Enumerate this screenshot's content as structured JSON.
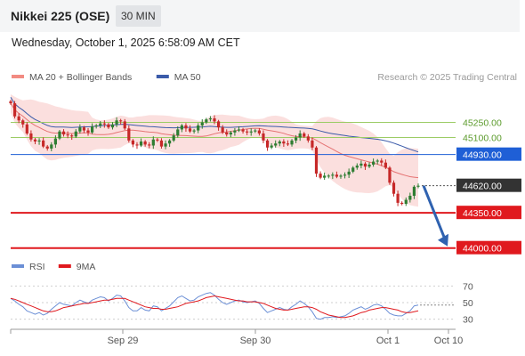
{
  "header": {
    "title": "Nikkei 225 (OSE)",
    "interval_button": "30 MIN",
    "datetime": "Wednesday, October 1, 2025 6:58:09 AM CET"
  },
  "colors": {
    "price_up": "#2e7d32",
    "price_down": "#c62828",
    "bollinger": "#f6b9b5",
    "ma20": "#e57373",
    "ma50": "#3b5ba9",
    "support": "#e0191e",
    "resistance_green": "#9ccc65",
    "pivot": "#1f5fd6",
    "current": "#333333",
    "forecast_arrow": "#2f62b0",
    "rsi": "#6b8fd6",
    "rsi_ma": "#e0191e"
  },
  "chart_data": [
    {
      "type": "candlestick",
      "legend": [
        {
          "label": "MA 20 + Bollinger Bands",
          "color": "#f28b82"
        },
        {
          "label": "MA 50",
          "color": "#3b5ba9"
        }
      ],
      "attribution": "Research © 2025 Trading Central",
      "x_ticks": [
        "Sep 29",
        "Sep 30",
        "Oct 1",
        "Oct 10"
      ],
      "ylim": [
        43900,
        45600
      ],
      "levels": [
        {
          "value": 45250,
          "label": "45250.00",
          "kind": "resistance"
        },
        {
          "value": 45100,
          "label": "45100.00",
          "kind": "resistance"
        },
        {
          "value": 44930,
          "label": "44930.00",
          "kind": "pivot"
        },
        {
          "value": 44620,
          "label": "44620.00",
          "kind": "current"
        },
        {
          "value": 44350,
          "label": "44350.00",
          "kind": "support"
        },
        {
          "value": 44000,
          "label": "44000.00",
          "kind": "support"
        }
      ],
      "forecast_target": 44000,
      "close": [
        45440,
        45310,
        45270,
        45230,
        45140,
        45080,
        45060,
        45070,
        45010,
        44990,
        45030,
        45090,
        45160,
        45130,
        45120,
        45110,
        45160,
        45200,
        45170,
        45150,
        45210,
        45220,
        45240,
        45230,
        45200,
        45230,
        45270,
        45260,
        45190,
        45070,
        45030,
        45020,
        45060,
        45030,
        45020,
        45080,
        45070,
        45010,
        45040,
        45070,
        45120,
        45180,
        45220,
        45190,
        45160,
        45170,
        45220,
        45250,
        45280,
        45290,
        45260,
        45200,
        45150,
        45130,
        45150,
        45170,
        45180,
        45160,
        45150,
        45160,
        45170,
        45140,
        45070,
        45000,
        45020,
        45040,
        45060,
        45040,
        45030,
        45070,
        45100,
        45140,
        45110,
        45070,
        45000,
        44740,
        44700,
        44720,
        44720,
        44730,
        44710,
        44720,
        44730,
        44760,
        44800,
        44820,
        44840,
        44810,
        44830,
        44860,
        44870,
        44850,
        44800,
        44650,
        44540,
        44450,
        44440,
        44480,
        44520,
        44610,
        44620
      ]
    },
    {
      "type": "line",
      "legend": [
        {
          "label": "RSI",
          "color": "#6b8fd6"
        },
        {
          "label": "9MA",
          "color": "#e0191e"
        }
      ],
      "ylim": [
        20,
        80
      ],
      "y_ticks": [
        70,
        50,
        30
      ],
      "rsi": [
        55,
        52,
        48,
        45,
        40,
        38,
        36,
        38,
        35,
        37,
        42,
        46,
        50,
        48,
        47,
        46,
        50,
        53,
        51,
        49,
        53,
        55,
        57,
        56,
        52,
        55,
        59,
        58,
        52,
        44,
        40,
        40,
        44,
        41,
        40,
        46,
        45,
        40,
        43,
        46,
        51,
        56,
        58,
        55,
        52,
        53,
        57,
        59,
        61,
        62,
        59,
        54,
        50,
        48,
        50,
        52,
        53,
        51,
        50,
        51,
        52,
        49,
        43,
        38,
        40,
        42,
        44,
        42,
        41,
        45,
        48,
        52,
        49,
        45,
        39,
        31,
        30,
        32,
        32,
        33,
        32,
        33,
        34,
        37,
        41,
        43,
        45,
        42,
        44,
        47,
        48,
        46,
        42,
        37,
        35,
        34,
        34,
        37,
        40,
        46,
        47
      ],
      "rsi_ma": [
        55,
        54,
        52,
        50,
        48,
        46,
        44,
        42,
        40,
        39,
        39,
        40,
        42,
        44,
        45,
        46,
        47,
        48,
        49,
        49,
        50,
        51,
        52,
        53,
        53,
        54,
        55,
        55,
        55,
        53,
        51,
        49,
        47,
        45,
        44,
        43,
        43,
        42,
        42,
        43,
        44,
        45,
        47,
        49,
        50,
        51,
        52,
        54,
        56,
        57,
        58,
        57,
        56,
        55,
        54,
        53,
        52,
        52,
        51,
        51,
        51,
        50,
        49,
        47,
        45,
        43,
        42,
        41,
        41,
        42,
        43,
        44,
        45,
        45,
        44,
        42,
        39,
        37,
        35,
        34,
        33,
        32,
        32,
        33,
        34,
        36,
        38,
        39,
        41,
        42,
        43,
        44,
        44,
        43,
        42,
        41,
        39,
        38,
        38,
        39,
        40
      ]
    }
  ]
}
